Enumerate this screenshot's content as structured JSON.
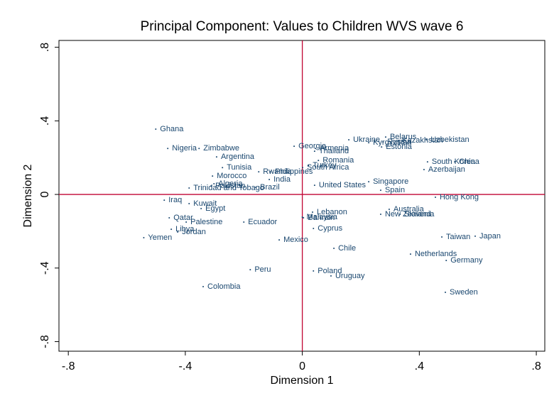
{
  "chart_data": {
    "type": "scatter",
    "title": "Principal Component: Values to Children WVS wave 6",
    "xlabel": "Dimension 1",
    "ylabel": "Dimension 2",
    "labels": [
      "Ghana",
      "Nigeria",
      "Zimbabwe",
      "Argentina",
      "Tunisia",
      "Morocco",
      "Algeria",
      "Pakistan",
      "Trinidad and Tobago",
      "Brazil",
      "Rwanda",
      "Philippines",
      "India",
      "Georgia",
      "Armenia",
      "Thailand",
      "Romania",
      "Turkey",
      "South Africa",
      "United States",
      "Ukraine",
      "Kyrgyzstan",
      "Belarus",
      "Russia",
      "Kazakhstan",
      "Estonia",
      "Uzbekistan",
      "South Korea",
      "China",
      "Azerbaijan",
      "Singapore",
      "Spain",
      "Hong Kong",
      "Australia",
      "New Zealand",
      "Slovenia",
      "Taiwan",
      "Japan",
      "Netherlands",
      "Germany",
      "Sweden",
      "Lebanon",
      "Malaysia",
      "Bahrain",
      "Cyprus",
      "Chile",
      "Poland",
      "Uruguay",
      "Mexico",
      "Peru",
      "Colombia",
      "Ecuador",
      "Palestine",
      "Iraq",
      "Kuwait",
      "Egypt",
      "Qatar",
      "Libya",
      "Jordan",
      "Yemen"
    ],
    "x": [
      -0.501,
      -0.46,
      -0.353,
      -0.293,
      -0.273,
      -0.307,
      -0.302,
      -0.312,
      -0.387,
      -0.159,
      -0.149,
      -0.108,
      -0.113,
      -0.028,
      0.045,
      0.042,
      0.055,
      0.021,
      0.001,
      0.042,
      0.159,
      0.227,
      0.285,
      0.276,
      0.327,
      0.271,
      0.424,
      0.428,
      0.521,
      0.416,
      0.227,
      0.268,
      0.455,
      0.297,
      0.268,
      0.334,
      0.477,
      0.591,
      0.37,
      0.492,
      0.489,
      0.035,
      0.0,
      0.004,
      0.038,
      0.108,
      0.038,
      0.098,
      -0.079,
      -0.178,
      -0.339,
      -0.2,
      -0.397,
      -0.472,
      -0.387,
      -0.346,
      -0.455,
      -0.448,
      -0.426,
      -0.542
    ],
    "y": [
      0.355,
      0.25,
      0.25,
      0.204,
      0.146,
      0.1,
      0.058,
      0.046,
      0.035,
      0.039,
      0.123,
      0.123,
      0.081,
      0.262,
      0.25,
      0.235,
      0.185,
      0.158,
      0.146,
      0.05,
      0.297,
      0.281,
      0.312,
      0.285,
      0.293,
      0.258,
      0.297,
      0.177,
      0.177,
      0.135,
      0.069,
      0.023,
      -0.015,
      -0.081,
      -0.108,
      -0.108,
      -0.231,
      -0.227,
      -0.324,
      -0.359,
      -0.532,
      -0.096,
      -0.123,
      -0.127,
      -0.185,
      -0.293,
      -0.416,
      -0.443,
      -0.247,
      -0.409,
      -0.501,
      -0.15,
      -0.15,
      -0.031,
      -0.05,
      -0.077,
      -0.127,
      -0.189,
      -0.204,
      -0.235
    ],
    "color": "#1a476f",
    "reference_line_color": "#c10534",
    "xlim": [
      -0.832,
      0.829
    ],
    "ylim": [
      -0.852,
      0.837
    ],
    "xticks": [
      {
        "value": -0.8,
        "label": "-.8"
      },
      {
        "value": -0.4,
        "label": "-.4"
      },
      0,
      {
        "value": 0.4,
        "label": ".4"
      },
      {
        "value": 0.8,
        "label": ".8"
      }
    ],
    "yticks": [
      {
        "value": -0.8,
        "label": "-.8"
      },
      {
        "value": -0.4,
        "label": "-.4"
      },
      0,
      {
        "value": 0.4,
        "label": ".4"
      },
      {
        "value": 0.8,
        "label": ".8"
      }
    ],
    "reference_lines": {
      "x": 0,
      "y": 0
    }
  }
}
